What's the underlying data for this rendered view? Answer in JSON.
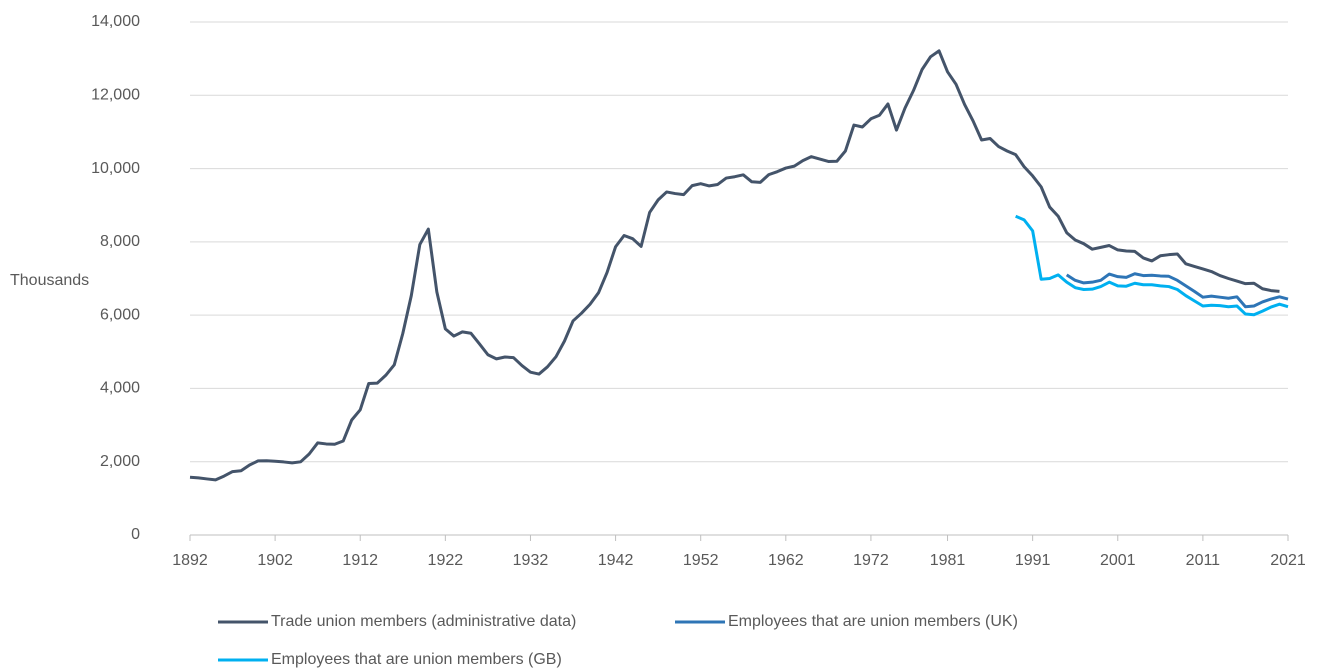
{
  "chart_data": {
    "type": "line",
    "y_label": "Thousands",
    "x": [
      1892,
      1893,
      1894,
      1895,
      1896,
      1897,
      1898,
      1899,
      1900,
      1901,
      1902,
      1903,
      1904,
      1905,
      1906,
      1907,
      1908,
      1909,
      1910,
      1911,
      1912,
      1913,
      1914,
      1915,
      1916,
      1917,
      1918,
      1919,
      1920,
      1921,
      1922,
      1923,
      1924,
      1925,
      1926,
      1927,
      1928,
      1929,
      1930,
      1931,
      1932,
      1933,
      1934,
      1935,
      1936,
      1937,
      1938,
      1939,
      1940,
      1941,
      1942,
      1943,
      1944,
      1945,
      1946,
      1947,
      1948,
      1949,
      1950,
      1951,
      1952,
      1953,
      1954,
      1955,
      1956,
      1957,
      1958,
      1959,
      1960,
      1961,
      1962,
      1963,
      1964,
      1965,
      1966,
      1967,
      1968,
      1969,
      1970,
      1971,
      1972,
      1973,
      1974,
      1975,
      1976,
      1977,
      1978,
      1979,
      1980,
      1981,
      1982,
      1983,
      1984,
      1985,
      1986,
      1987,
      1988,
      1989,
      1990,
      1991,
      1992,
      1993,
      1994,
      1995,
      1996,
      1997,
      1998,
      1999,
      2000,
      2001,
      2002,
      2003,
      2004,
      2005,
      2006,
      2007,
      2008,
      2009,
      2010,
      2011,
      2012,
      2013,
      2014,
      2015,
      2016,
      2017,
      2018,
      2019,
      2020,
      2021
    ],
    "series": [
      {
        "name": "Trade union members (administrative data)",
        "color": "#44546a",
        "values": [
          1576,
          1559,
          1530,
          1504,
          1608,
          1731,
          1752,
          1911,
          2022,
          2025,
          2013,
          1994,
          1967,
          1997,
          2210,
          2513,
          2485,
          2477,
          2565,
          3139,
          3416,
          4135,
          4145,
          4359,
          4644,
          5499,
          6533,
          7926,
          8348,
          6633,
          5625,
          5429,
          5544,
          5506,
          5219,
          4919,
          4806,
          4858,
          4842,
          4624,
          4444,
          4392,
          4590,
          4867,
          5295,
          5842,
          6053,
          6298,
          6613,
          7165,
          7867,
          8174,
          8087,
          7875,
          8803,
          9145,
          9362,
          9318,
          9289,
          9535,
          9588,
          9527,
          9566,
          9741,
          9778,
          9829,
          9639,
          9623,
          9835,
          9916,
          10014,
          10067,
          10218,
          10325,
          10259,
          10194,
          10200,
          10479,
          11187,
          11135,
          11359,
          11456,
          11764,
          11050,
          11650,
          12130,
          12700,
          13050,
          13212,
          12640,
          12300,
          11750,
          11300,
          10780,
          10820,
          10600,
          10480,
          10380,
          10050,
          9800,
          9500,
          8950,
          8700,
          8250,
          8050,
          7950,
          7800,
          7850,
          7900,
          7780,
          7750,
          7740,
          7560,
          7480,
          7620,
          7650,
          7670,
          7400,
          7330,
          7260,
          7190,
          7080,
          7000,
          6930,
          6860,
          6870,
          6720,
          6670,
          6650,
          null
        ]
      },
      {
        "name": "Employees that are union members (UK)",
        "color": "#2e75b6",
        "values": [
          null,
          null,
          null,
          null,
          null,
          null,
          null,
          null,
          null,
          null,
          null,
          null,
          null,
          null,
          null,
          null,
          null,
          null,
          null,
          null,
          null,
          null,
          null,
          null,
          null,
          null,
          null,
          null,
          null,
          null,
          null,
          null,
          null,
          null,
          null,
          null,
          null,
          null,
          null,
          null,
          null,
          null,
          null,
          null,
          null,
          null,
          null,
          null,
          null,
          null,
          null,
          null,
          null,
          null,
          null,
          null,
          null,
          null,
          null,
          null,
          null,
          null,
          null,
          null,
          null,
          null,
          null,
          null,
          null,
          null,
          null,
          null,
          null,
          null,
          null,
          null,
          null,
          null,
          null,
          null,
          null,
          null,
          null,
          null,
          null,
          null,
          null,
          null,
          null,
          null,
          null,
          null,
          null,
          null,
          null,
          null,
          null,
          null,
          null,
          null,
          null,
          null,
          null,
          7100,
          6950,
          6880,
          6900,
          6950,
          7120,
          7050,
          7030,
          7130,
          7080,
          7090,
          7070,
          7060,
          6950,
          6800,
          6650,
          6490,
          6520,
          6490,
          6460,
          6500,
          6230,
          6250,
          6360,
          6440,
          6500,
          6440
        ]
      },
      {
        "name": "Employees that are union members (GB)",
        "color": "#00b0f0",
        "values": [
          null,
          null,
          null,
          null,
          null,
          null,
          null,
          null,
          null,
          null,
          null,
          null,
          null,
          null,
          null,
          null,
          null,
          null,
          null,
          null,
          null,
          null,
          null,
          null,
          null,
          null,
          null,
          null,
          null,
          null,
          null,
          null,
          null,
          null,
          null,
          null,
          null,
          null,
          null,
          null,
          null,
          null,
          null,
          null,
          null,
          null,
          null,
          null,
          null,
          null,
          null,
          null,
          null,
          null,
          null,
          null,
          null,
          null,
          null,
          null,
          null,
          null,
          null,
          null,
          null,
          null,
          null,
          null,
          null,
          null,
          null,
          null,
          null,
          null,
          null,
          null,
          null,
          null,
          null,
          null,
          null,
          null,
          null,
          null,
          null,
          null,
          null,
          null,
          null,
          null,
          null,
          null,
          null,
          null,
          null,
          null,
          null,
          8700,
          8600,
          8300,
          6980,
          7000,
          7100,
          6900,
          6750,
          6700,
          6710,
          6780,
          6900,
          6800,
          6790,
          6870,
          6830,
          6830,
          6800,
          6780,
          6700,
          6530,
          6390,
          6250,
          6270,
          6260,
          6230,
          6250,
          6030,
          6010,
          6110,
          6220,
          6300,
          6230
        ]
      }
    ],
    "xlim": [
      1892,
      2021
    ],
    "xticks": [
      1892,
      1902,
      1912,
      1922,
      1932,
      1942,
      1952,
      1962,
      1972,
      1981,
      1991,
      2001,
      2011,
      2021
    ],
    "ylim": [
      0,
      14000
    ],
    "yticks": [
      0,
      {
        "value": 2000,
        "label": "2,000"
      },
      {
        "value": 4000,
        "label": "4,000"
      },
      {
        "value": 6000,
        "label": "6,000"
      },
      {
        "value": 8000,
        "label": "8,000"
      },
      {
        "value": 10000,
        "label": "10,000"
      },
      {
        "value": 12000,
        "label": "12,000"
      },
      {
        "value": 14000,
        "label": "14,000"
      }
    ],
    "grid": true
  }
}
